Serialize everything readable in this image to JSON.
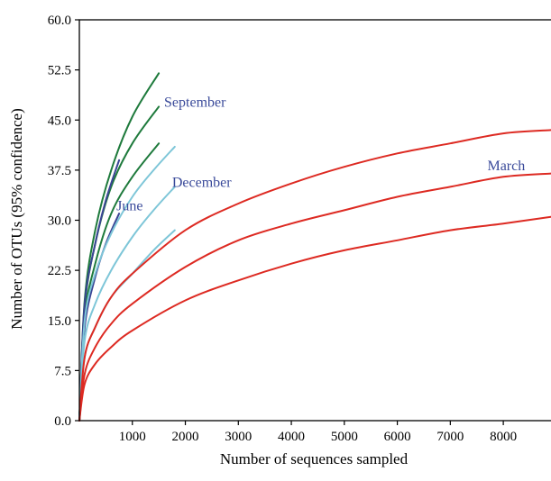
{
  "chart_data": {
    "type": "line",
    "xlabel": "Number of sequences sampled",
    "ylabel": "Number of OTUs (95% confidence)",
    "xlim": [
      0,
      8900
    ],
    "ylim": [
      0,
      60
    ],
    "x_ticks": [
      1000,
      2000,
      3000,
      4000,
      5000,
      6000,
      7000,
      8000
    ],
    "x_tick_labels": [
      "1000",
      "2000",
      "3000",
      "4000",
      "5000",
      "6000",
      "7000",
      "8000"
    ],
    "y_ticks": [
      0,
      7.5,
      15,
      22.5,
      30,
      37.5,
      45,
      52.5,
      60
    ],
    "y_tick_labels": [
      "0.0",
      "7.5",
      "15.0",
      "22.5",
      "30.0",
      "37.5",
      "45.0",
      "52.5",
      "60.0"
    ],
    "grid": false,
    "legend": "none",
    "colors": {
      "September": "#1e7a3c",
      "June": "#3a4494",
      "December": "#7ec6d8",
      "March": "#dd2a22"
    },
    "label_colors": {
      "September": "#3a4a9a",
      "June": "#3a4a9a",
      "December": "#3a4a9a",
      "March": "#3a4a9a"
    },
    "labels": [
      {
        "text": "September",
        "x": 1600,
        "y": 47
      },
      {
        "text": "December",
        "x": 1750,
        "y": 35
      },
      {
        "text": "June",
        "x": 700,
        "y": 31.5
      },
      {
        "text": "March",
        "x": 7700,
        "y": 37.5
      }
    ],
    "series": [
      {
        "group": "September",
        "values": [
          [
            0,
            0
          ],
          [
            100,
            18
          ],
          [
            300,
            28.5
          ],
          [
            600,
            37.5
          ],
          [
            1000,
            45.5
          ],
          [
            1500,
            52
          ]
        ]
      },
      {
        "group": "September",
        "values": [
          [
            0,
            0
          ],
          [
            100,
            17
          ],
          [
            300,
            26.5
          ],
          [
            600,
            35
          ],
          [
            1000,
            41.5
          ],
          [
            1500,
            47
          ]
        ]
      },
      {
        "group": "September",
        "values": [
          [
            0,
            0
          ],
          [
            100,
            15.5
          ],
          [
            300,
            23.5
          ],
          [
            600,
            31
          ],
          [
            1000,
            36.5
          ],
          [
            1500,
            41.5
          ]
        ]
      },
      {
        "group": "June",
        "values": [
          [
            0,
            0
          ],
          [
            100,
            17.5
          ],
          [
            300,
            26.5
          ],
          [
            500,
            33
          ],
          [
            750,
            39
          ]
        ]
      },
      {
        "group": "June",
        "values": [
          [
            0,
            0
          ],
          [
            100,
            14
          ],
          [
            300,
            21.5
          ],
          [
            500,
            26.5
          ],
          [
            750,
            31
          ]
        ]
      },
      {
        "group": "December",
        "values": [
          [
            0,
            0
          ],
          [
            100,
            15
          ],
          [
            300,
            22
          ],
          [
            600,
            28
          ],
          [
            1000,
            33.5
          ],
          [
            1400,
            37.5
          ],
          [
            1800,
            41
          ]
        ]
      },
      {
        "group": "December",
        "values": [
          [
            0,
            0
          ],
          [
            100,
            12
          ],
          [
            300,
            17.5
          ],
          [
            600,
            22.5
          ],
          [
            1000,
            27.5
          ],
          [
            1400,
            31.5
          ],
          [
            1800,
            35
          ]
        ]
      },
      {
        "group": "December",
        "values": [
          [
            0,
            0
          ],
          [
            100,
            9.5
          ],
          [
            300,
            14
          ],
          [
            600,
            18.5
          ],
          [
            1000,
            22
          ],
          [
            1400,
            25.5
          ],
          [
            1800,
            28.5
          ]
        ]
      },
      {
        "group": "March",
        "values": [
          [
            0,
            0
          ],
          [
            100,
            9.5
          ],
          [
            300,
            14
          ],
          [
            600,
            18.5
          ],
          [
            1000,
            22
          ],
          [
            2000,
            28.5
          ],
          [
            3000,
            32.5
          ],
          [
            4000,
            35.5
          ],
          [
            5000,
            38
          ],
          [
            6000,
            40
          ],
          [
            7000,
            41.5
          ],
          [
            8000,
            43
          ],
          [
            8900,
            43.5
          ]
        ]
      },
      {
        "group": "March",
        "values": [
          [
            0,
            0
          ],
          [
            100,
            7
          ],
          [
            300,
            11
          ],
          [
            600,
            14.5
          ],
          [
            1000,
            17.5
          ],
          [
            2000,
            23
          ],
          [
            3000,
            27
          ],
          [
            4000,
            29.5
          ],
          [
            5000,
            31.5
          ],
          [
            6000,
            33.5
          ],
          [
            7000,
            35
          ],
          [
            8000,
            36.5
          ],
          [
            8900,
            37
          ]
        ]
      },
      {
        "group": "March",
        "values": [
          [
            0,
            0
          ],
          [
            100,
            5.5
          ],
          [
            300,
            8.5
          ],
          [
            600,
            11
          ],
          [
            1000,
            13.5
          ],
          [
            2000,
            18
          ],
          [
            3000,
            21
          ],
          [
            4000,
            23.5
          ],
          [
            5000,
            25.5
          ],
          [
            6000,
            27
          ],
          [
            7000,
            28.5
          ],
          [
            8000,
            29.5
          ],
          [
            8900,
            30.5
          ]
        ]
      }
    ]
  }
}
